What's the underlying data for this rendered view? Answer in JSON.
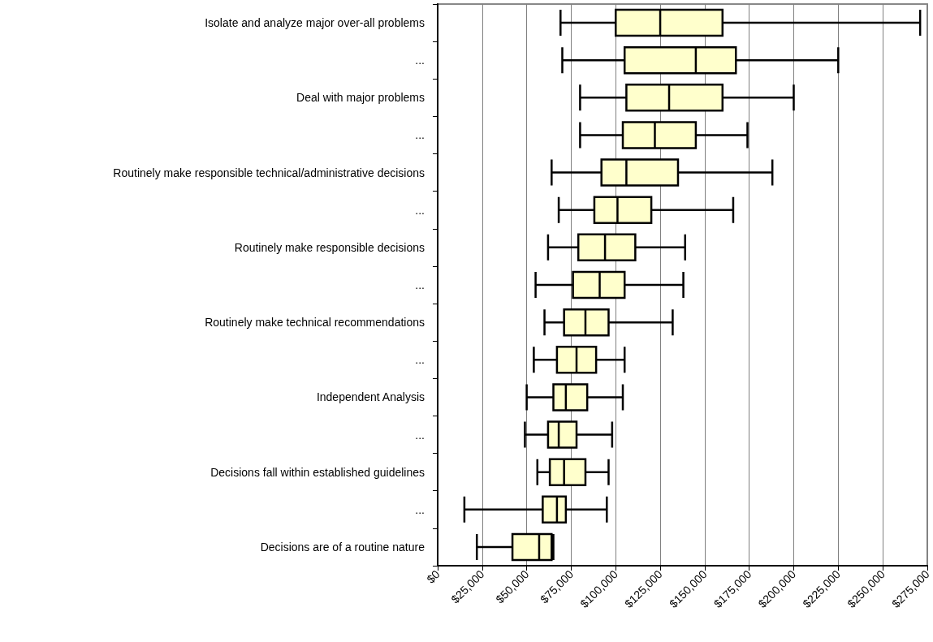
{
  "chart_data": {
    "type": "box",
    "orientation": "horizontal",
    "color": "#ffffcc",
    "categories": [
      "Isolate and analyze major over-all problems",
      "...",
      "Deal with major problems",
      "...",
      "Routinely make responsible technical/administrative decisions",
      "...",
      "Routinely make responsible decisions",
      "...",
      "Routinely make technical recommendations",
      "...",
      "Independent Analysis",
      "...",
      "Decisions fall within established guidelines",
      "...",
      "Decisions are of a routine nature"
    ],
    "boxes": [
      {
        "low": 69000,
        "q1": 100000,
        "median": 125000,
        "q3": 160000,
        "high": 271000
      },
      {
        "low": 70000,
        "q1": 105000,
        "median": 145000,
        "q3": 167500,
        "high": 225000
      },
      {
        "low": 80000,
        "q1": 106000,
        "median": 130000,
        "q3": 160000,
        "high": 200000
      },
      {
        "low": 80000,
        "q1": 104000,
        "median": 122000,
        "q3": 145000,
        "high": 174000
      },
      {
        "low": 64000,
        "q1": 92000,
        "median": 106000,
        "q3": 135000,
        "high": 188000
      },
      {
        "low": 68000,
        "q1": 88000,
        "median": 101000,
        "q3": 120000,
        "high": 166000
      },
      {
        "low": 62000,
        "q1": 79000,
        "median": 94000,
        "q3": 111000,
        "high": 139000
      },
      {
        "low": 55000,
        "q1": 76000,
        "median": 91000,
        "q3": 105000,
        "high": 138000
      },
      {
        "low": 60000,
        "q1": 71000,
        "median": 83000,
        "q3": 96000,
        "high": 132000
      },
      {
        "low": 54000,
        "q1": 67000,
        "median": 78000,
        "q3": 89000,
        "high": 105000
      },
      {
        "low": 50000,
        "q1": 65000,
        "median": 72000,
        "q3": 84000,
        "high": 104000
      },
      {
        "low": 49000,
        "q1": 62000,
        "median": 68000,
        "q3": 78000,
        "high": 98000
      },
      {
        "low": 56000,
        "q1": 63000,
        "median": 71000,
        "q3": 83000,
        "high": 96000
      },
      {
        "low": 15000,
        "q1": 59000,
        "median": 67000,
        "q3": 72000,
        "high": 95000
      },
      {
        "low": 22000,
        "q1": 42000,
        "median": 57000,
        "q3": 64000,
        "high": 65000
      }
    ],
    "xlim": [
      0,
      275000
    ],
    "xticks": [
      {
        "value": 0,
        "label": "$0"
      },
      {
        "value": 25000,
        "label": "$25,000"
      },
      {
        "value": 50000,
        "label": "$50,000"
      },
      {
        "value": 75000,
        "label": "$75,000"
      },
      {
        "value": 100000,
        "label": "$100,000"
      },
      {
        "value": 125000,
        "label": "$125,000"
      },
      {
        "value": 150000,
        "label": "$150,000"
      },
      {
        "value": 175000,
        "label": "$175,000"
      },
      {
        "value": 200000,
        "label": "$200,000"
      },
      {
        "value": 225000,
        "label": "$225,000"
      },
      {
        "value": 250000,
        "label": "$250,000"
      },
      {
        "value": 275000,
        "label": "$275,000"
      }
    ],
    "grid": "x"
  }
}
